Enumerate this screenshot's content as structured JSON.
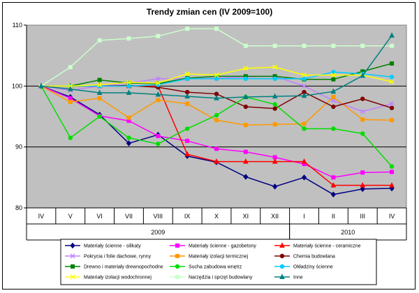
{
  "chart_data": {
    "type": "line",
    "title": "Trendy zmian cen (IV 2009=100)",
    "xlabel": "",
    "ylabel": "",
    "categories": [
      "IV",
      "V",
      "VI",
      "VII",
      "VIII",
      "IX",
      "X",
      "XI",
      "XII",
      "I",
      "II",
      "III",
      "IV"
    ],
    "year_groups": [
      {
        "label": "2009",
        "from": 0,
        "to": 8
      },
      {
        "label": "2010",
        "from": 9,
        "to": 12
      }
    ],
    "ylim": [
      80,
      110
    ],
    "yticks": [
      "80",
      "90",
      "100",
      "110"
    ],
    "grid": true,
    "plot_background": "#c0c0c0",
    "legend_position": "bottom",
    "series": [
      {
        "name": "Materiały ścienne - silikaty",
        "color": "#000080",
        "marker": "diamond",
        "values": [
          100,
          98.2,
          95.3,
          90.6,
          92.0,
          88.5,
          87.5,
          85.1,
          83.5,
          85.0,
          82.2,
          83.1,
          83.2
        ]
      },
      {
        "name": "Materiały ścienne - gazobetony",
        "color": "#ff00ff",
        "marker": "square",
        "values": [
          100,
          98.0,
          95.1,
          94.3,
          91.8,
          91.0,
          89.7,
          89.2,
          88.3,
          87.2,
          85.0,
          85.8,
          85.9
        ]
      },
      {
        "name": "Materiały ścienne - ceramiczne",
        "color": "#ff0000",
        "marker": "triangle",
        "values": [
          100,
          100,
          100,
          100,
          100,
          88.8,
          87.6,
          87.6,
          87.6,
          87.6,
          83.7,
          83.7,
          83.7
        ]
      },
      {
        "name": "Pokrycia i folie dachowe, rynny",
        "color": "#c080ff",
        "marker": "x",
        "values": [
          100,
          99.3,
          100,
          100.5,
          101.2,
          101.2,
          101.3,
          101.5,
          101.6,
          100.0,
          97.6,
          95.8,
          97.1
        ]
      },
      {
        "name": "Materiały izolacji termicznej",
        "color": "#ff9900",
        "marker": "square",
        "values": [
          100,
          97.4,
          98.0,
          94.8,
          97.7,
          97.1,
          94.4,
          93.6,
          93.7,
          93.8,
          98.2,
          94.5,
          94.4
        ]
      },
      {
        "name": "Chemia budowlana",
        "color": "#800000",
        "marker": "circle",
        "values": [
          100,
          100,
          100,
          100.1,
          99.8,
          99.0,
          98.7,
          96.6,
          96.3,
          99.0,
          96.6,
          97.9,
          96.4
        ]
      },
      {
        "name": "Drewno i materiały drewnopochodne",
        "color": "#008000",
        "marker": "square",
        "values": [
          100,
          100,
          101.0,
          100.5,
          100.4,
          101.3,
          101.6,
          101.6,
          101.6,
          101.1,
          101.1,
          102.4,
          103.7
        ]
      },
      {
        "name": "Sucha zabudowa wnętrz",
        "color": "#00dd00",
        "marker": "circle",
        "values": [
          100,
          91.5,
          95.0,
          91.5,
          90.5,
          93.0,
          95.2,
          98.2,
          97.0,
          93.0,
          93.0,
          92.2,
          86.8
        ]
      },
      {
        "name": "Okładziny ścienne",
        "color": "#00ccff",
        "marker": "circle",
        "values": [
          100,
          100,
          100,
          100,
          100.2,
          101.2,
          101.2,
          101.2,
          101.2,
          101.2,
          102.3,
          102.0,
          101.5
        ]
      },
      {
        "name": "Materiały izolacji wodochronnej",
        "color": "#ffff00",
        "marker": "x",
        "values": [
          100,
          100,
          100.2,
          100.6,
          100.5,
          102.0,
          101.8,
          102.9,
          103.1,
          101.8,
          101.8,
          101.8,
          100.7
        ]
      },
      {
        "name": "Narzędzia i sprzęt budowlany",
        "color": "#ccffcc",
        "marker": "square",
        "values": [
          100,
          103.1,
          107.5,
          107.8,
          108.2,
          109.4,
          109.4,
          106.6,
          106.6,
          106.6,
          106.6,
          106.6,
          106.6
        ]
      },
      {
        "name": "Inne",
        "color": "#008080",
        "marker": "triangle",
        "values": [
          100,
          99.5,
          98.9,
          98.9,
          98.6,
          98.3,
          98.0,
          98.2,
          98.3,
          98.4,
          99.1,
          101.7,
          108.3
        ]
      }
    ]
  }
}
